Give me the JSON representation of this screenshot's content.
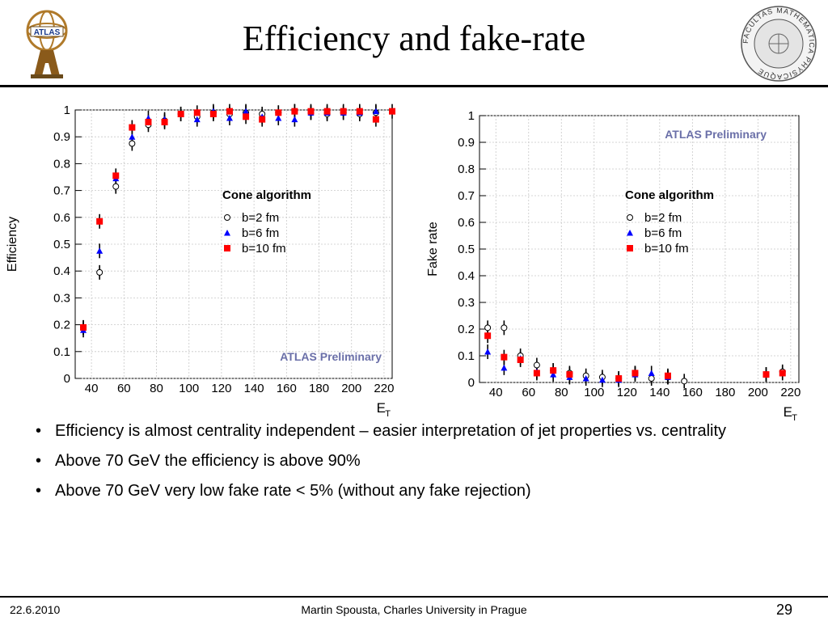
{
  "slide": {
    "title": "Efficiency and fake-rate",
    "bullets": [
      "Efficiency is almost centrality independent – easier interpretation of  jet properties vs. centrality",
      "Above 70 GeV the efficiency is above 90%",
      "Above 70 GeV very low fake rate < 5% (without any fake rejection)"
    ],
    "footer": {
      "date": "22.6.2010",
      "author": "Martin Spousta,  Charles University in Prague",
      "page": "29"
    },
    "logo_left_text": "ATLAS",
    "logo_right_text": "FACULTAS MATHEMATICA PHYSICAQUE"
  },
  "chart_data": [
    {
      "id": "efficiency",
      "type": "scatter",
      "ylabel": "Efficiency",
      "xlabel": "E",
      "xlabel_sub": "T",
      "xlim": [
        30,
        225
      ],
      "ylim": [
        0,
        1
      ],
      "xticks": [
        40,
        60,
        80,
        100,
        120,
        140,
        160,
        180,
        200,
        220
      ],
      "yticks": [
        0,
        0.1,
        0.2,
        0.3,
        0.4,
        0.5,
        0.6,
        0.7,
        0.8,
        0.9,
        1
      ],
      "grid": true,
      "annotation_algo": "Cone algorithm",
      "annotation_prelim": "ATLAS Preliminary",
      "legend_position": "middle-right",
      "series": [
        {
          "name": "b=2 fm",
          "marker": "open-circle",
          "color": "#000000",
          "points": [
            [
              35,
              0.19
            ],
            [
              45,
              0.395
            ],
            [
              55,
              0.715
            ],
            [
              65,
              0.875
            ],
            [
              75,
              0.945
            ],
            [
              85,
              0.96
            ],
            [
              95,
              0.985
            ],
            [
              105,
              0.975
            ],
            [
              115,
              0.99
            ],
            [
              125,
              0.985
            ],
            [
              135,
              0.99
            ],
            [
              145,
              0.985
            ],
            [
              155,
              0.99
            ],
            [
              165,
              0.995
            ],
            [
              175,
              0.99
            ],
            [
              185,
              0.985
            ],
            [
              195,
              0.99
            ],
            [
              205,
              0.985
            ],
            [
              215,
              0.99
            ]
          ]
        },
        {
          "name": "b=6 fm",
          "marker": "filled-triangle",
          "color": "#0000ff",
          "points": [
            [
              35,
              0.18
            ],
            [
              45,
              0.475
            ],
            [
              55,
              0.745
            ],
            [
              65,
              0.9
            ],
            [
              75,
              0.97
            ],
            [
              85,
              0.965
            ],
            [
              95,
              0.985
            ],
            [
              105,
              0.965
            ],
            [
              115,
              0.995
            ],
            [
              125,
              0.97
            ],
            [
              135,
              0.995
            ],
            [
              145,
              0.975
            ],
            [
              155,
              0.97
            ],
            [
              165,
              0.965
            ],
            [
              175,
              0.99
            ],
            [
              185,
              0.99
            ],
            [
              195,
              0.99
            ],
            [
              205,
              0.99
            ],
            [
              215,
              0.995
            ]
          ]
        },
        {
          "name": "b=10 fm",
          "marker": "filled-square",
          "color": "#ff0000",
          "points": [
            [
              35,
              0.19
            ],
            [
              45,
              0.585
            ],
            [
              55,
              0.755
            ],
            [
              65,
              0.935
            ],
            [
              75,
              0.955
            ],
            [
              85,
              0.955
            ],
            [
              95,
              0.985
            ],
            [
              105,
              0.99
            ],
            [
              115,
              0.985
            ],
            [
              125,
              0.995
            ],
            [
              135,
              0.975
            ],
            [
              145,
              0.965
            ],
            [
              155,
              0.99
            ],
            [
              165,
              0.995
            ],
            [
              175,
              0.995
            ],
            [
              185,
              0.995
            ],
            [
              195,
              0.995
            ],
            [
              205,
              0.995
            ],
            [
              215,
              0.965
            ],
            [
              225,
              0.995
            ]
          ]
        }
      ]
    },
    {
      "id": "fake-rate",
      "type": "scatter",
      "ylabel": "Fake rate",
      "xlabel": "E",
      "xlabel_sub": "T",
      "xlim": [
        30,
        225
      ],
      "ylim": [
        0,
        1
      ],
      "xticks": [
        40,
        60,
        80,
        100,
        120,
        140,
        160,
        180,
        200,
        220
      ],
      "yticks": [
        0,
        0.1,
        0.2,
        0.3,
        0.4,
        0.5,
        0.6,
        0.7,
        0.8,
        0.9,
        1
      ],
      "grid": true,
      "annotation_algo": "Cone algorithm",
      "annotation_prelim": "ATLAS Preliminary",
      "legend_position": "top-right",
      "series": [
        {
          "name": "b=2 fm",
          "marker": "open-circle",
          "color": "#000000",
          "points": [
            [
              35,
              0.205
            ],
            [
              45,
              0.205
            ],
            [
              55,
              0.1
            ],
            [
              65,
              0.065
            ],
            [
              75,
              0.045
            ],
            [
              85,
              0.035
            ],
            [
              95,
              0.025
            ],
            [
              105,
              0.02
            ],
            [
              115,
              0.015
            ],
            [
              125,
              0.035
            ],
            [
              135,
              0.015
            ],
            [
              145,
              0.02
            ],
            [
              155,
              0.005
            ],
            [
              205,
              0.03
            ],
            [
              215,
              0.04
            ]
          ]
        },
        {
          "name": "b=6 fm",
          "marker": "filled-triangle",
          "color": "#0000ff",
          "points": [
            [
              35,
              0.115
            ],
            [
              45,
              0.055
            ],
            [
              55,
              0.09
            ],
            [
              65,
              0.04
            ],
            [
              75,
              0.03
            ],
            [
              85,
              0.02
            ],
            [
              95,
              0.015
            ],
            [
              105,
              0.01
            ],
            [
              115,
              0.01
            ],
            [
              125,
              0.03
            ],
            [
              135,
              0.035
            ],
            [
              145,
              0.02
            ]
          ]
        },
        {
          "name": "b=10 fm",
          "marker": "filled-square",
          "color": "#ff0000",
          "points": [
            [
              35,
              0.175
            ],
            [
              45,
              0.095
            ],
            [
              55,
              0.085
            ],
            [
              65,
              0.035
            ],
            [
              75,
              0.045
            ],
            [
              85,
              0.03
            ],
            [
              115,
              0.015
            ],
            [
              125,
              0.035
            ],
            [
              145,
              0.025
            ],
            [
              205,
              0.03
            ],
            [
              215,
              0.035
            ]
          ]
        }
      ]
    }
  ]
}
